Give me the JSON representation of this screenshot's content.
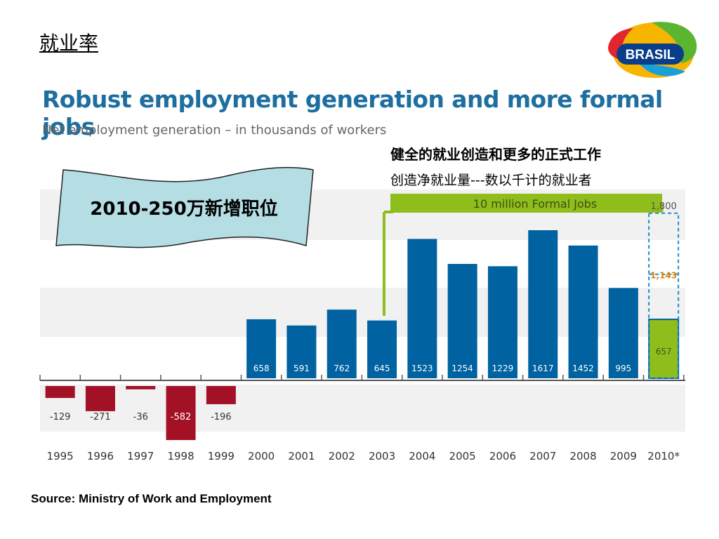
{
  "slide": {
    "title": "就业率",
    "source": "Source: Ministry of Work and Employment"
  },
  "logo": {
    "text": "BRASIL"
  },
  "annotations": {
    "cn_title": "健全的就业创造和更多的正式工作",
    "cn_subtitle": "创造净就业量---数以千计的就业者",
    "banner_text": "2010-250万新增职位",
    "bracket_label": "10 million Formal Jobs"
  },
  "colors": {
    "positive": "#0062a0",
    "negative": "#a31127",
    "highlight": "#8fbd1c",
    "title": "#1e6fa0",
    "target_value": "#d9850b"
  },
  "chart_data": {
    "type": "bar",
    "title": "Robust employment generation and more formal jobs",
    "subtitle": "Net employment generation – in thousands of workers",
    "categories": [
      "1995",
      "1996",
      "1997",
      "1998",
      "1999",
      "2000",
      "2001",
      "2002",
      "2003",
      "2004",
      "2005",
      "2006",
      "2007",
      "2008",
      "2009",
      "2010*"
    ],
    "values": [
      -129,
      -271,
      -36,
      -582,
      -196,
      658,
      591,
      762,
      645,
      1523,
      1254,
      1229,
      1617,
      1452,
      995,
      657
    ],
    "value_labels": [
      "-129",
      "-271",
      "-36",
      "-582",
      "-196",
      "658",
      "591",
      "762",
      "645",
      "1523",
      "1254",
      "1229",
      "1617",
      "1452",
      "995",
      "657"
    ],
    "targets_2010": [
      {
        "label": "1,800",
        "value": 1800
      },
      {
        "label": "1,143",
        "value": 1143
      }
    ],
    "ylim": [
      -600,
      1800
    ],
    "grid": "alternating bands"
  }
}
